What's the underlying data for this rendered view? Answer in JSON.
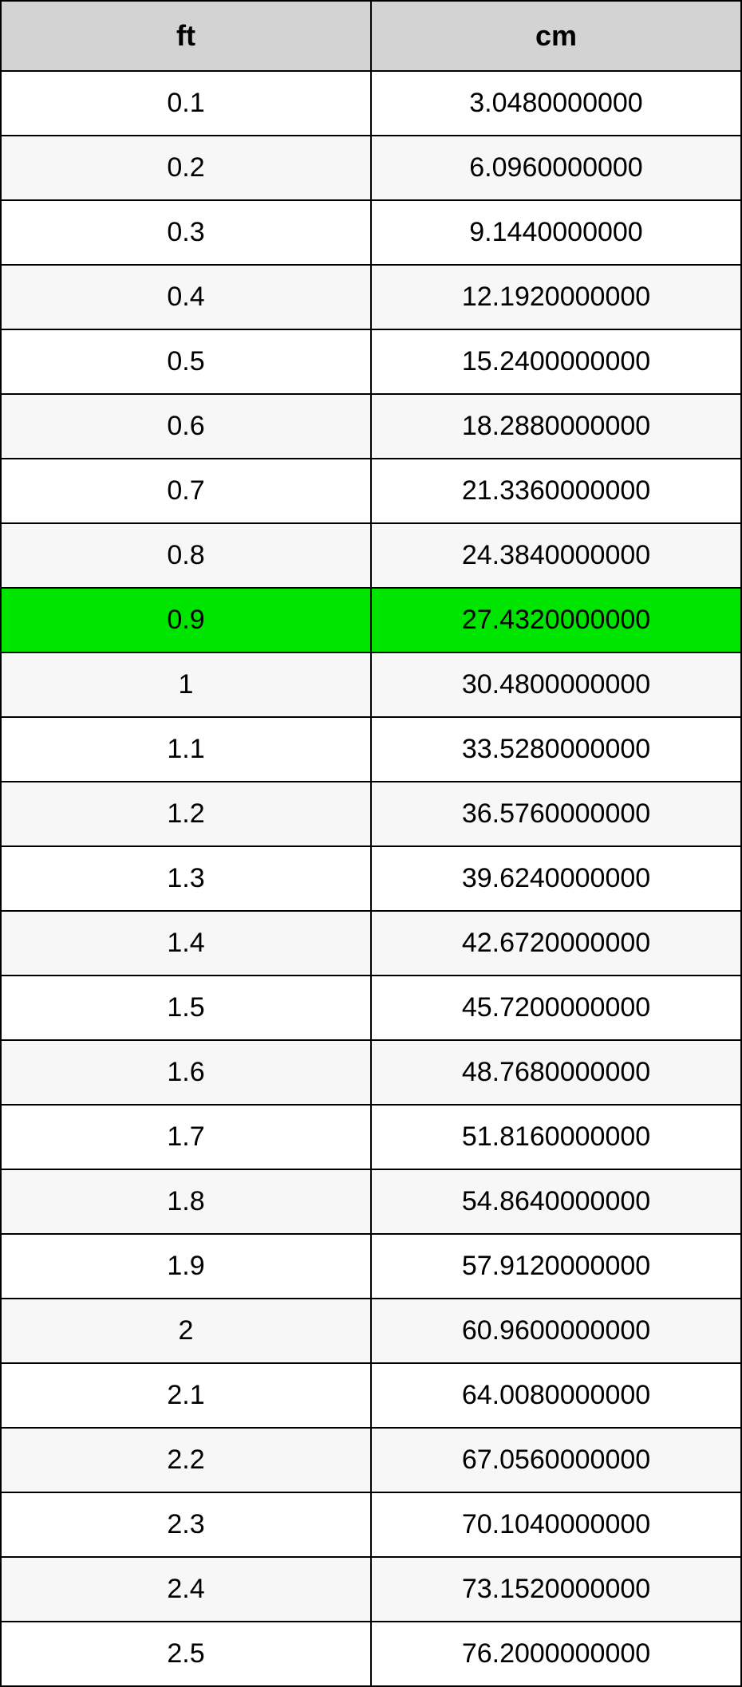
{
  "table": {
    "columns": [
      "ft",
      "cm"
    ],
    "header_bg": "#d3d3d3",
    "header_font_weight": "bold",
    "header_font_size": 36,
    "cell_font_size": 34,
    "border_color": "#000000",
    "odd_row_bg": "#ffffff",
    "even_row_bg": "#f7f7f7",
    "highlight_bg": "#00e500",
    "text_color": "#000000",
    "rows": [
      {
        "ft": "0.1",
        "cm": "3.0480000000",
        "highlight": false
      },
      {
        "ft": "0.2",
        "cm": "6.0960000000",
        "highlight": false
      },
      {
        "ft": "0.3",
        "cm": "9.1440000000",
        "highlight": false
      },
      {
        "ft": "0.4",
        "cm": "12.1920000000",
        "highlight": false
      },
      {
        "ft": "0.5",
        "cm": "15.2400000000",
        "highlight": false
      },
      {
        "ft": "0.6",
        "cm": "18.2880000000",
        "highlight": false
      },
      {
        "ft": "0.7",
        "cm": "21.3360000000",
        "highlight": false
      },
      {
        "ft": "0.8",
        "cm": "24.3840000000",
        "highlight": false
      },
      {
        "ft": "0.9",
        "cm": "27.4320000000",
        "highlight": true
      },
      {
        "ft": "1",
        "cm": "30.4800000000",
        "highlight": false
      },
      {
        "ft": "1.1",
        "cm": "33.5280000000",
        "highlight": false
      },
      {
        "ft": "1.2",
        "cm": "36.5760000000",
        "highlight": false
      },
      {
        "ft": "1.3",
        "cm": "39.6240000000",
        "highlight": false
      },
      {
        "ft": "1.4",
        "cm": "42.6720000000",
        "highlight": false
      },
      {
        "ft": "1.5",
        "cm": "45.7200000000",
        "highlight": false
      },
      {
        "ft": "1.6",
        "cm": "48.7680000000",
        "highlight": false
      },
      {
        "ft": "1.7",
        "cm": "51.8160000000",
        "highlight": false
      },
      {
        "ft": "1.8",
        "cm": "54.8640000000",
        "highlight": false
      },
      {
        "ft": "1.9",
        "cm": "57.9120000000",
        "highlight": false
      },
      {
        "ft": "2",
        "cm": "60.9600000000",
        "highlight": false
      },
      {
        "ft": "2.1",
        "cm": "64.0080000000",
        "highlight": false
      },
      {
        "ft": "2.2",
        "cm": "67.0560000000",
        "highlight": false
      },
      {
        "ft": "2.3",
        "cm": "70.1040000000",
        "highlight": false
      },
      {
        "ft": "2.4",
        "cm": "73.1520000000",
        "highlight": false
      },
      {
        "ft": "2.5",
        "cm": "76.2000000000",
        "highlight": false
      }
    ]
  }
}
